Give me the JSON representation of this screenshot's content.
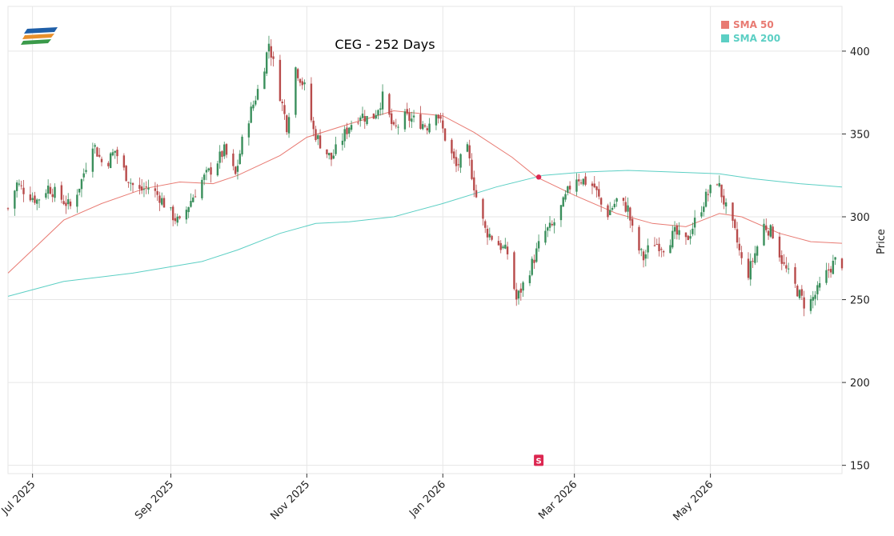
{
  "chart_data": {
    "type": "candlestick",
    "title": "CEG - 252 Days",
    "ylabel": "Price",
    "xlabel": "",
    "ylim": [
      145,
      427
    ],
    "y_ticks": [
      150,
      200,
      250,
      300,
      350,
      400
    ],
    "x_ticks": [
      {
        "label": "Jul 2025",
        "date": "2025-07-01"
      },
      {
        "label": "Sep 2025",
        "date": "2025-09-01"
      },
      {
        "label": "Nov 2025",
        "date": "2025-11-01"
      },
      {
        "label": "Jan 2026",
        "date": "2026-01-01"
      },
      {
        "label": "Mar 2026",
        "date": "2026-03-01"
      },
      {
        "label": "May 2026",
        "date": "2026-05-01"
      }
    ],
    "x_range": [
      "2025-06-20",
      "2026-06-29"
    ],
    "grid": true,
    "legend_position": "top-right",
    "colors": {
      "up": "#3a8f5c",
      "down": "#b84b4b",
      "sma50": "#e87a72",
      "sma200": "#5ccfc4",
      "signal": "#dc2650"
    },
    "close_anchors": [
      [
        "2025-06-20",
        305
      ],
      [
        "2025-06-24",
        320
      ],
      [
        "2025-06-28",
        315
      ],
      [
        "2025-07-03",
        310
      ],
      [
        "2025-07-08",
        318
      ],
      [
        "2025-07-13",
        312
      ],
      [
        "2025-07-18",
        306
      ],
      [
        "2025-07-23",
        322
      ],
      [
        "2025-07-28",
        345
      ],
      [
        "2025-08-02",
        330
      ],
      [
        "2025-08-07",
        340
      ],
      [
        "2025-08-12",
        325
      ],
      [
        "2025-08-17",
        315
      ],
      [
        "2025-08-22",
        318
      ],
      [
        "2025-08-27",
        312
      ],
      [
        "2025-09-01",
        302
      ],
      [
        "2025-09-05",
        296
      ],
      [
        "2025-09-10",
        310
      ],
      [
        "2025-09-15",
        322
      ],
      [
        "2025-09-20",
        330
      ],
      [
        "2025-09-25",
        340
      ],
      [
        "2025-09-30",
        325
      ],
      [
        "2025-10-04",
        352
      ],
      [
        "2025-10-08",
        368
      ],
      [
        "2025-10-12",
        385
      ],
      [
        "2025-10-15",
        405
      ],
      [
        "2025-10-19",
        380
      ],
      [
        "2025-10-23",
        355
      ],
      [
        "2025-10-27",
        390
      ],
      [
        "2025-10-31",
        378
      ],
      [
        "2025-11-04",
        352
      ],
      [
        "2025-11-08",
        342
      ],
      [
        "2025-11-12",
        335
      ],
      [
        "2025-11-16",
        345
      ],
      [
        "2025-11-20",
        355
      ],
      [
        "2025-11-25",
        362
      ],
      [
        "2025-11-30",
        358
      ],
      [
        "2025-12-05",
        372
      ],
      [
        "2025-12-10",
        352
      ],
      [
        "2025-12-15",
        360
      ],
      [
        "2025-12-20",
        358
      ],
      [
        "2025-12-25",
        355
      ],
      [
        "2025-12-29",
        365
      ],
      [
        "2026-01-02",
        348
      ],
      [
        "2026-01-07",
        330
      ],
      [
        "2026-01-12",
        340
      ],
      [
        "2026-01-16",
        312
      ],
      [
        "2026-01-20",
        292
      ],
      [
        "2026-01-25",
        285
      ],
      [
        "2026-01-30",
        278
      ],
      [
        "2026-02-03",
        250
      ],
      [
        "2026-02-07",
        262
      ],
      [
        "2026-02-11",
        275
      ],
      [
        "2026-02-15",
        290
      ],
      [
        "2026-02-19",
        294
      ],
      [
        "2026-02-24",
        308
      ],
      [
        "2026-03-01",
        325
      ],
      [
        "2026-03-05",
        322
      ],
      [
        "2026-03-10",
        318
      ],
      [
        "2026-03-15",
        300
      ],
      [
        "2026-03-20",
        310
      ],
      [
        "2026-03-25",
        305
      ],
      [
        "2026-03-28",
        285
      ],
      [
        "2026-04-01",
        275
      ],
      [
        "2026-04-05",
        285
      ],
      [
        "2026-04-10",
        282
      ],
      [
        "2026-04-15",
        290
      ],
      [
        "2026-04-20",
        285
      ],
      [
        "2026-04-25",
        300
      ],
      [
        "2026-04-29",
        312
      ],
      [
        "2026-05-04",
        322
      ],
      [
        "2026-05-08",
        305
      ],
      [
        "2026-05-12",
        290
      ],
      [
        "2026-05-17",
        262
      ],
      [
        "2026-05-21",
        278
      ],
      [
        "2026-05-25",
        295
      ],
      [
        "2026-05-29",
        290
      ],
      [
        "2026-06-03",
        270
      ],
      [
        "2026-06-08",
        258
      ],
      [
        "2026-06-13",
        245
      ],
      [
        "2026-06-18",
        255
      ],
      [
        "2026-06-23",
        268
      ],
      [
        "2026-06-27",
        275
      ],
      [
        "2026-06-29",
        272
      ]
    ],
    "sma50": [
      [
        "2025-06-20",
        266
      ],
      [
        "2025-07-01",
        280
      ],
      [
        "2025-07-15",
        298
      ],
      [
        "2025-08-01",
        308
      ],
      [
        "2025-08-20",
        317
      ],
      [
        "2025-09-05",
        321
      ],
      [
        "2025-09-20",
        320
      ],
      [
        "2025-10-01",
        325
      ],
      [
        "2025-10-20",
        337
      ],
      [
        "2025-11-01",
        348
      ],
      [
        "2025-11-20",
        356
      ],
      [
        "2025-12-10",
        364
      ],
      [
        "2026-01-01",
        361
      ],
      [
        "2026-01-15",
        351
      ],
      [
        "2026-02-01",
        336
      ],
      [
        "2026-02-12",
        324
      ],
      [
        "2026-03-01",
        313
      ],
      [
        "2026-03-20",
        302
      ],
      [
        "2026-04-05",
        296
      ],
      [
        "2026-04-20",
        294
      ],
      [
        "2026-05-05",
        302
      ],
      [
        "2026-05-15",
        300
      ],
      [
        "2026-06-01",
        290
      ],
      [
        "2026-06-15",
        285
      ],
      [
        "2026-06-29",
        284
      ]
    ],
    "sma200": [
      [
        "2025-06-20",
        252
      ],
      [
        "2025-07-15",
        261
      ],
      [
        "2025-08-15",
        266
      ],
      [
        "2025-09-15",
        273
      ],
      [
        "2025-10-01",
        280
      ],
      [
        "2025-10-20",
        290
      ],
      [
        "2025-11-05",
        296
      ],
      [
        "2025-11-20",
        297
      ],
      [
        "2025-12-10",
        300
      ],
      [
        "2026-01-01",
        308
      ],
      [
        "2026-01-25",
        318
      ],
      [
        "2026-02-15",
        325
      ],
      [
        "2026-03-05",
        327
      ],
      [
        "2026-03-25",
        328
      ],
      [
        "2026-04-15",
        327
      ],
      [
        "2026-05-05",
        326
      ],
      [
        "2026-05-20",
        323
      ],
      [
        "2026-06-10",
        320
      ],
      [
        "2026-06-29",
        318
      ]
    ],
    "legend": [
      {
        "label": "SMA 50",
        "color": "#e87a72"
      },
      {
        "label": "SMA 200",
        "color": "#5ccfc4"
      }
    ],
    "cross_marker": {
      "date": "2026-02-13",
      "value": 324
    },
    "signal_marker": {
      "date": "2026-02-13",
      "value": 153,
      "label": "S"
    }
  }
}
